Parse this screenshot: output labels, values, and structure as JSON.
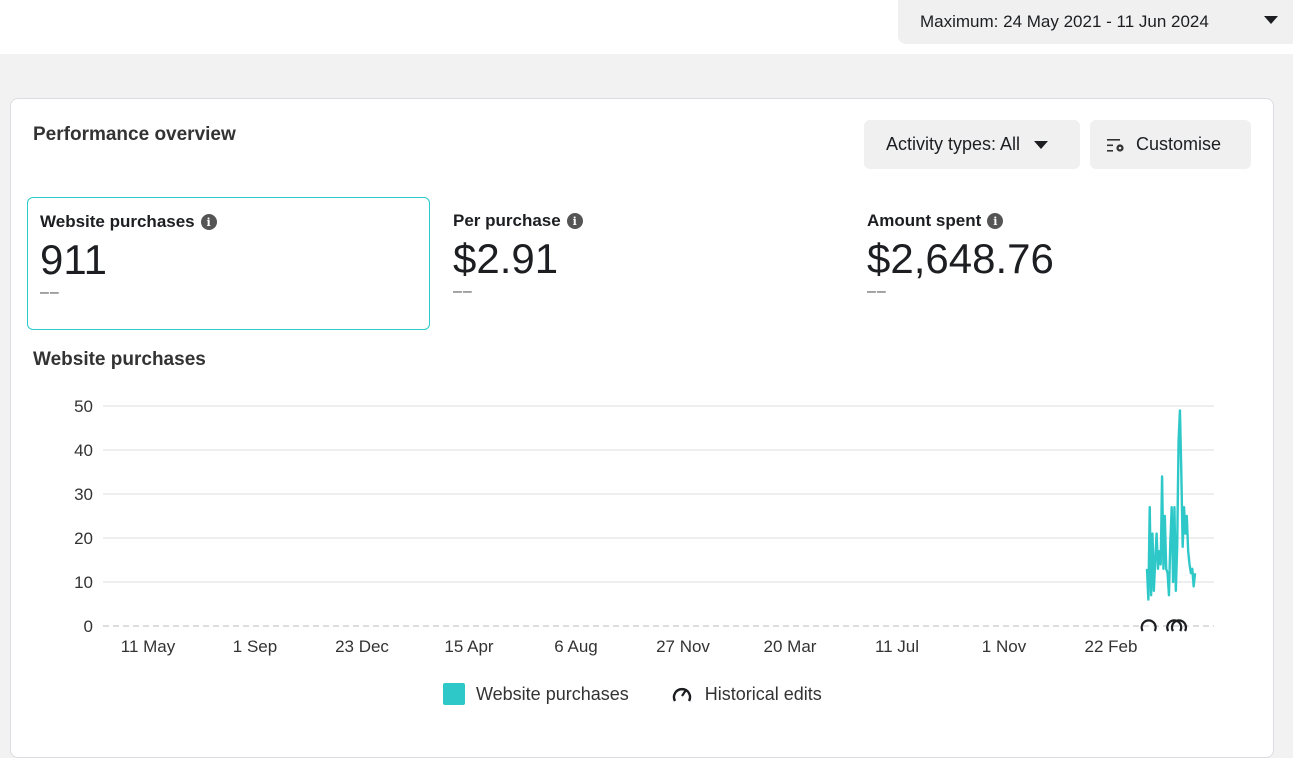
{
  "date_range": {
    "label": "Maximum: 24 May 2021 - 11 Jun 2024"
  },
  "card": {
    "title": "Performance overview",
    "activity_button": "Activity types: All",
    "customise_button": "Customise",
    "metrics": [
      {
        "label": "Website purchases",
        "value": "911",
        "comparison": "––",
        "selected": true
      },
      {
        "label": "Per purchase",
        "value": "$2.91",
        "comparison": "––",
        "selected": false
      },
      {
        "label": "Amount spent",
        "value": "$2,648.76",
        "comparison": "––",
        "selected": false
      }
    ],
    "chart_title": "Website purchases"
  },
  "colors": {
    "series": "#2ec8c8",
    "selected_border": "#2bcbcb"
  },
  "chart_data": {
    "type": "line",
    "title": "Website purchases",
    "ylim": [
      0,
      50
    ],
    "yticks": [
      "0",
      "10",
      "20",
      "30",
      "40",
      "50"
    ],
    "xticks": [
      "11 May",
      "1 Sep",
      "23 Dec",
      "15 Apr",
      "6 Aug",
      "27 Nov",
      "20 Mar",
      "11 Jul",
      "1 Nov",
      "22 Feb"
    ],
    "xtick_dates": [
      "2021-05-11",
      "2021-09-01",
      "2021-12-23",
      "2022-04-15",
      "2022-08-06",
      "2022-11-27",
      "2023-03-20",
      "2023-07-11",
      "2023-11-01",
      "2024-02-22"
    ],
    "grid": true,
    "series": [
      {
        "name": "Website purchases",
        "start_date": "2024-03-31",
        "values": [
          13,
          6,
          27,
          7,
          21,
          8,
          15,
          21,
          13,
          17,
          14,
          34,
          13,
          25,
          13,
          12,
          7,
          19,
          27,
          10,
          27,
          8,
          18,
          42,
          49,
          35,
          18,
          27,
          21,
          25,
          17,
          14,
          12,
          13,
          9,
          12
        ]
      }
    ],
    "historical_edit_dates": [
      "2024-04-06",
      "2024-05-03",
      "2024-05-08"
    ],
    "legend": [
      "Website purchases",
      "Historical edits"
    ],
    "legend_placement": "bottom"
  }
}
